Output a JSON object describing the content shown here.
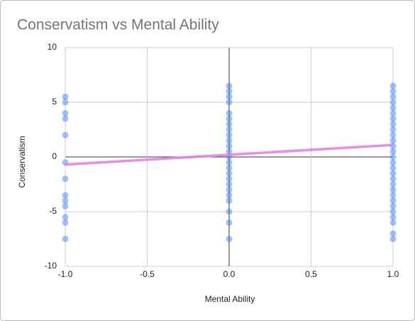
{
  "chart_data": {
    "type": "scatter",
    "title": "Conservatism vs Mental Ability",
    "x_label": "Mental Ability",
    "y_label": "Conservatism",
    "xlim": [
      -1,
      1
    ],
    "ylim": [
      -10,
      10
    ],
    "xticks": [
      {
        "value": -1,
        "label": "-1.0"
      },
      -0.5,
      {
        "value": 0,
        "label": "0.0"
      },
      0.5,
      {
        "value": 1,
        "label": "1.0"
      }
    ],
    "yticks": [
      -10,
      -5,
      0,
      5,
      10
    ],
    "grid": true,
    "series": [
      {
        "color": "#4285f4",
        "x": [
          -1,
          -1,
          -1,
          -1,
          -1,
          -1,
          -1,
          -1,
          -1,
          -1,
          -1,
          -1,
          -1,
          0,
          0,
          0,
          0,
          0,
          0,
          0,
          0,
          0,
          0,
          0,
          0,
          0,
          0,
          0,
          0,
          0,
          0,
          0,
          0,
          0,
          0,
          0,
          0,
          1,
          1,
          1,
          1,
          1,
          1,
          1,
          1,
          1,
          1,
          1,
          1,
          1,
          1,
          1,
          1,
          1,
          1,
          1,
          1,
          1,
          1,
          1,
          1,
          1,
          1,
          1,
          1
        ],
        "y": [
          5.5,
          5,
          4,
          3.5,
          2,
          -0.5,
          -2,
          -3.5,
          -4,
          -4.5,
          -5.5,
          -6,
          -7.5,
          6.5,
          6,
          5.5,
          5,
          4,
          3.5,
          3,
          2.5,
          2,
          1.5,
          1,
          0.5,
          0,
          -0.5,
          -1,
          -1.5,
          -2,
          -2.5,
          -3,
          -3.5,
          -4,
          -5,
          -6,
          -7.5,
          6.5,
          6,
          5.5,
          5,
          4.5,
          4,
          3.5,
          3,
          2.5,
          2,
          1.5,
          1,
          0.5,
          0,
          -0.5,
          -1,
          -1.5,
          -2,
          -2.5,
          -3,
          -3.5,
          -4,
          -4.5,
          -5,
          -5.5,
          -6,
          -7,
          -7.5
        ]
      }
    ],
    "trendline": {
      "color": "#e47fe8",
      "x": [
        -1,
        1
      ],
      "y": [
        -0.7,
        1.1
      ]
    }
  }
}
